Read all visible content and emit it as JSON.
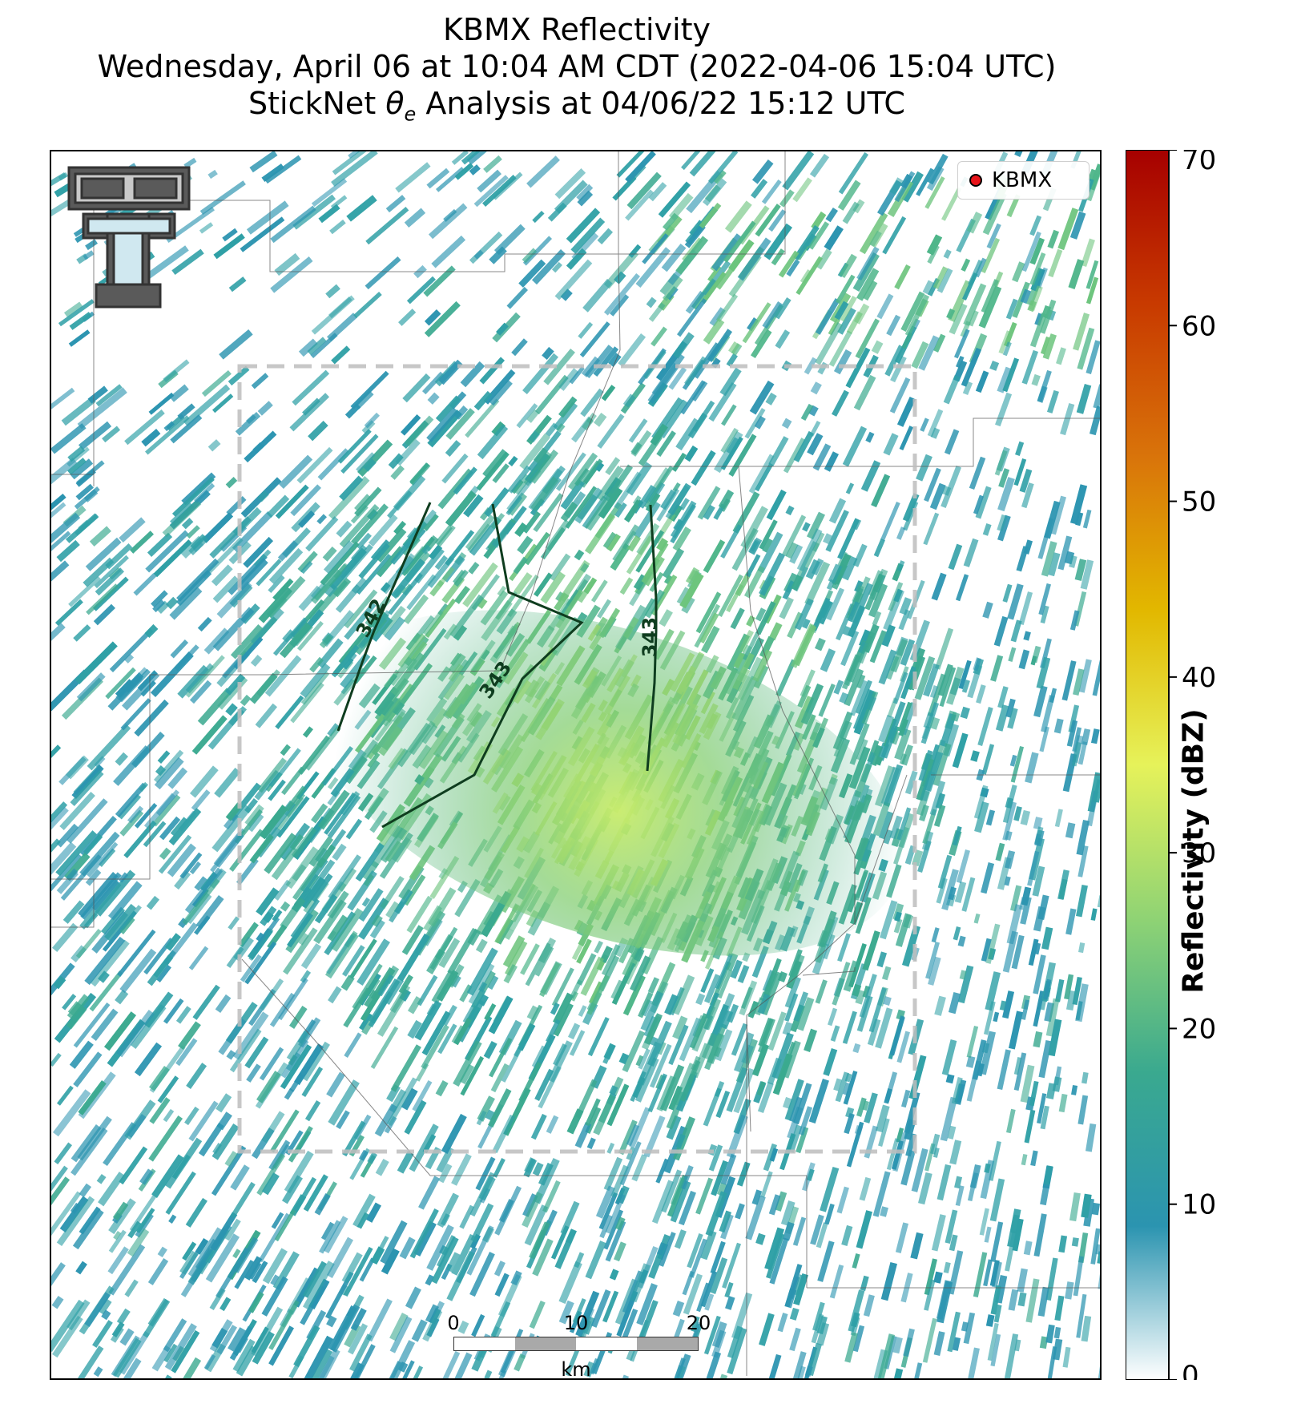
{
  "title": {
    "line1": "KBMX Reflectivity",
    "line2": "Wednesday, April 06 at 10:04 AM CDT (2022-04-06 15:04 UTC)",
    "line3_prefix": "StickNet ",
    "line3_symbol": "θ",
    "line3_subscript": "e",
    "line3_suffix": " Analysis at 04/06/22 15:12 UTC"
  },
  "legend": {
    "marker_label": "KBMX",
    "marker_color": "#e8141a"
  },
  "colorbar": {
    "label": "Reflectivity (dBZ)",
    "ticks": [
      "0",
      "10",
      "20",
      "30",
      "40",
      "50",
      "60",
      "70"
    ],
    "range": [
      0,
      70
    ],
    "colors": [
      "#ffffff",
      "#2b94b0",
      "#3aa98f",
      "#8fd374",
      "#e6f25a",
      "#e2b800",
      "#d9740a",
      "#c83a00",
      "#a60000"
    ]
  },
  "contours": {
    "color": "#0f3d1f",
    "labels": [
      "342",
      "343",
      "343"
    ]
  },
  "scalebar": {
    "ticks": [
      "0",
      "10",
      "20"
    ],
    "unit": "km"
  },
  "logo": {
    "name": "Texas Tech Double T",
    "icon": "double-t-logo"
  },
  "analysis_domain": {
    "style": "dashed-gray-box"
  }
}
